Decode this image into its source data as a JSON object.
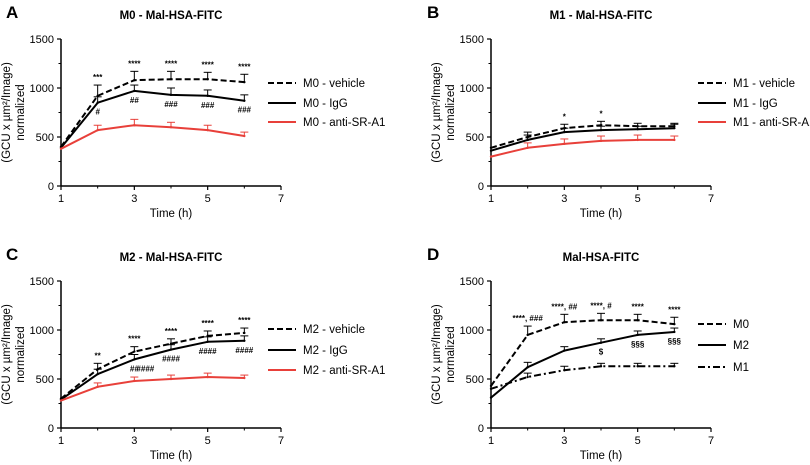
{
  "chart_data": [
    {
      "type": "line",
      "panel_label": "A",
      "title": "M0 - Mal-HSA-FITC",
      "xlabel": "Time (h)",
      "ylabel": [
        "(GCU x µm²/Image)",
        "normalized"
      ],
      "xlim": [
        1,
        7
      ],
      "ylim": [
        0,
        1500
      ],
      "xticks": [
        1,
        3,
        5,
        7
      ],
      "yticks": [
        0,
        500,
        1000,
        1500
      ],
      "x": [
        1,
        2,
        3,
        4,
        5,
        6
      ],
      "series": [
        {
          "name": "M0 - vehicle",
          "values": [
            400,
            920,
            1080,
            1090,
            1090,
            1060
          ],
          "errors": [
            0,
            110,
            90,
            80,
            70,
            80
          ],
          "color": "#000000",
          "style": "dashed"
        },
        {
          "name": "M0 - IgG",
          "values": [
            390,
            850,
            970,
            930,
            920,
            870
          ],
          "errors": [
            0,
            60,
            60,
            70,
            60,
            60
          ],
          "color": "#000000",
          "style": "solid"
        },
        {
          "name": "M0 - anti-SR-A1",
          "values": [
            380,
            570,
            620,
            600,
            570,
            510
          ],
          "errors": [
            0,
            50,
            60,
            50,
            50,
            40
          ],
          "color": "#e8403a",
          "style": "solid"
        }
      ],
      "annotations": [
        {
          "x": 2,
          "above": "***",
          "below": "#"
        },
        {
          "x": 3,
          "above": "****",
          "below": "##"
        },
        {
          "x": 4,
          "above": "****",
          "below": "###"
        },
        {
          "x": 5,
          "above": "****",
          "below": "###"
        },
        {
          "x": 6,
          "above": "****",
          "below": "###"
        }
      ]
    },
    {
      "type": "line",
      "panel_label": "B",
      "title": "M1 - Mal-HSA-FITC",
      "xlabel": "Time (h)",
      "ylabel": [
        "(GCU x µm²/Image)",
        "normalized"
      ],
      "xlim": [
        1,
        7
      ],
      "ylim": [
        0,
        1500
      ],
      "xticks": [
        1,
        3,
        5,
        7
      ],
      "yticks": [
        0,
        500,
        1000,
        1500
      ],
      "x": [
        1,
        2,
        3,
        4,
        5,
        6
      ],
      "series": [
        {
          "name": "M1 - vehicle",
          "values": [
            390,
            500,
            590,
            620,
            610,
            610
          ],
          "errors": [
            0,
            50,
            40,
            40,
            30,
            30
          ],
          "color": "#000000",
          "style": "dashed"
        },
        {
          "name": "M1 - IgG",
          "values": [
            360,
            470,
            550,
            570,
            580,
            590
          ],
          "errors": [
            0,
            50,
            40,
            40,
            30,
            40
          ],
          "color": "#000000",
          "style": "solid"
        },
        {
          "name": "M1 - anti-SR-A1",
          "values": [
            300,
            390,
            430,
            460,
            470,
            470
          ],
          "errors": [
            0,
            50,
            50,
            50,
            50,
            40
          ],
          "color": "#e8403a",
          "style": "solid"
        }
      ],
      "annotations": [
        {
          "x": 3,
          "above": "*",
          "below": ""
        },
        {
          "x": 4,
          "above": "*",
          "below": ""
        }
      ]
    },
    {
      "type": "line",
      "panel_label": "C",
      "title": "M2 - Mal-HSA-FITC",
      "xlabel": "Time (h)",
      "ylabel": [
        "(GCU x µm²/Image)",
        "normalized"
      ],
      "xlim": [
        1,
        7
      ],
      "ylim": [
        0,
        1500
      ],
      "xticks": [
        1,
        3,
        5,
        7
      ],
      "yticks": [
        0,
        500,
        1000,
        1500
      ],
      "x": [
        1,
        2,
        3,
        4,
        5,
        6
      ],
      "series": [
        {
          "name": "M2 - vehicle",
          "values": [
            300,
            600,
            780,
            860,
            940,
            970
          ],
          "errors": [
            0,
            60,
            50,
            50,
            50,
            50
          ],
          "color": "#000000",
          "style": "dashed"
        },
        {
          "name": "M2 - IgG",
          "values": [
            290,
            550,
            700,
            800,
            880,
            890
          ],
          "errors": [
            0,
            50,
            50,
            50,
            50,
            50
          ],
          "color": "#000000",
          "style": "solid"
        },
        {
          "name": "M2 - anti-SR-A1",
          "values": [
            280,
            420,
            480,
            500,
            520,
            510
          ],
          "errors": [
            0,
            40,
            40,
            40,
            40,
            30
          ],
          "color": "#e8403a",
          "style": "solid"
        }
      ],
      "annotations": [
        {
          "x": 2,
          "above": "**",
          "below": ""
        },
        {
          "x": 3,
          "above": "****",
          "below": "##"
        },
        {
          "x": 3.3,
          "above": "",
          "below": "####"
        },
        {
          "x": 4,
          "above": "****",
          "below": "####"
        },
        {
          "x": 5,
          "above": "****",
          "below": "####"
        },
        {
          "x": 6,
          "above": "****",
          "below": "####"
        }
      ]
    },
    {
      "type": "line",
      "panel_label": "D",
      "title": "Mal-HSA-FITC",
      "xlabel": "Time (h)",
      "ylabel": [
        "(GCU x µm²/Image)",
        "normalized"
      ],
      "xlim": [
        1,
        7
      ],
      "ylim": [
        0,
        1500
      ],
      "xticks": [
        1,
        3,
        5,
        7
      ],
      "yticks": [
        0,
        500,
        1000,
        1500
      ],
      "x": [
        1,
        2,
        3,
        4,
        5,
        6
      ],
      "series": [
        {
          "name": "M0",
          "values": [
            430,
            950,
            1080,
            1100,
            1100,
            1060
          ],
          "errors": [
            0,
            90,
            80,
            70,
            60,
            70
          ],
          "color": "#000000",
          "style": "dashed"
        },
        {
          "name": "M2",
          "values": [
            310,
            620,
            790,
            870,
            950,
            980
          ],
          "errors": [
            0,
            50,
            40,
            40,
            40,
            40
          ],
          "color": "#000000",
          "style": "solid"
        },
        {
          "name": "M1",
          "values": [
            400,
            520,
            590,
            630,
            630,
            630
          ],
          "errors": [
            0,
            40,
            40,
            30,
            30,
            30
          ],
          "color": "#000000",
          "style": "dashdot"
        }
      ],
      "annotations": [
        {
          "x": 2,
          "above": "****, ###",
          "below": ""
        },
        {
          "x": 3,
          "above": "****, ##",
          "below": ""
        },
        {
          "x": 4,
          "above": "****, #",
          "below": "$"
        },
        {
          "x": 5,
          "above": "****",
          "below": "§§§"
        },
        {
          "x": 6,
          "above": "****",
          "below": "§§§"
        }
      ]
    }
  ]
}
